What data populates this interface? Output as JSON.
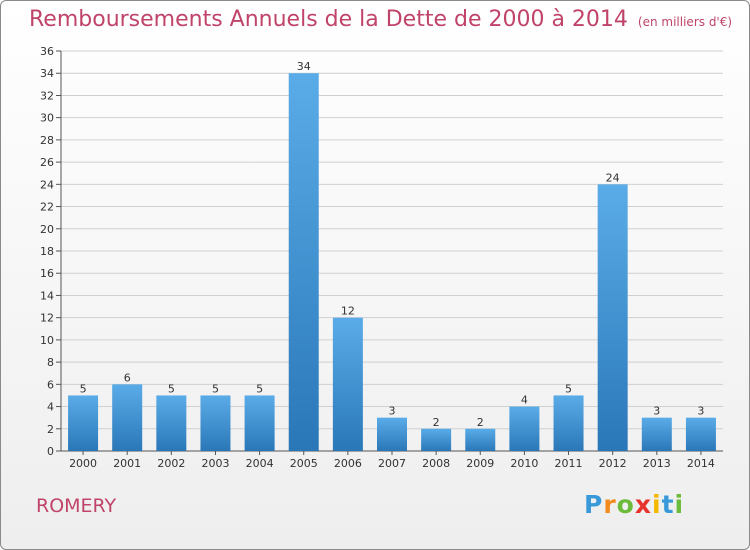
{
  "header": {
    "title": "Remboursements Annuels de la Dette de 2000 à 2014",
    "subtitle": "(en milliers d'€)"
  },
  "commune": "ROMERY",
  "logo": {
    "letters": [
      "P",
      "r",
      "o",
      "x",
      "i",
      "t",
      "i"
    ],
    "colors": [
      "#3a9ad9",
      "#f28c1e",
      "#6dbb3a",
      "#e8332d",
      "#f5b800",
      "#3a9ad9",
      "#6dbb3a"
    ]
  },
  "colors": {
    "bar_light": "#5aace8",
    "bar_dark": "#2a77b8",
    "grid": "#d0d0d0",
    "axis": "#555555"
  },
  "chart_data": {
    "type": "bar",
    "title": "Remboursements Annuels de la Dette de 2000 à 2014",
    "xlabel": "",
    "ylabel": "",
    "categories": [
      "2000",
      "2001",
      "2002",
      "2003",
      "2004",
      "2005",
      "2006",
      "2007",
      "2008",
      "2009",
      "2010",
      "2011",
      "2012",
      "2013",
      "2014"
    ],
    "values": [
      5,
      6,
      5,
      5,
      5,
      34,
      12,
      3,
      2,
      2,
      4,
      5,
      24,
      3,
      3
    ],
    "ylim": [
      0,
      36
    ],
    "yticks": [
      0,
      2,
      4,
      6,
      8,
      10,
      12,
      14,
      16,
      18,
      20,
      22,
      24,
      26,
      28,
      30,
      32,
      34,
      36
    ],
    "grid": true
  }
}
